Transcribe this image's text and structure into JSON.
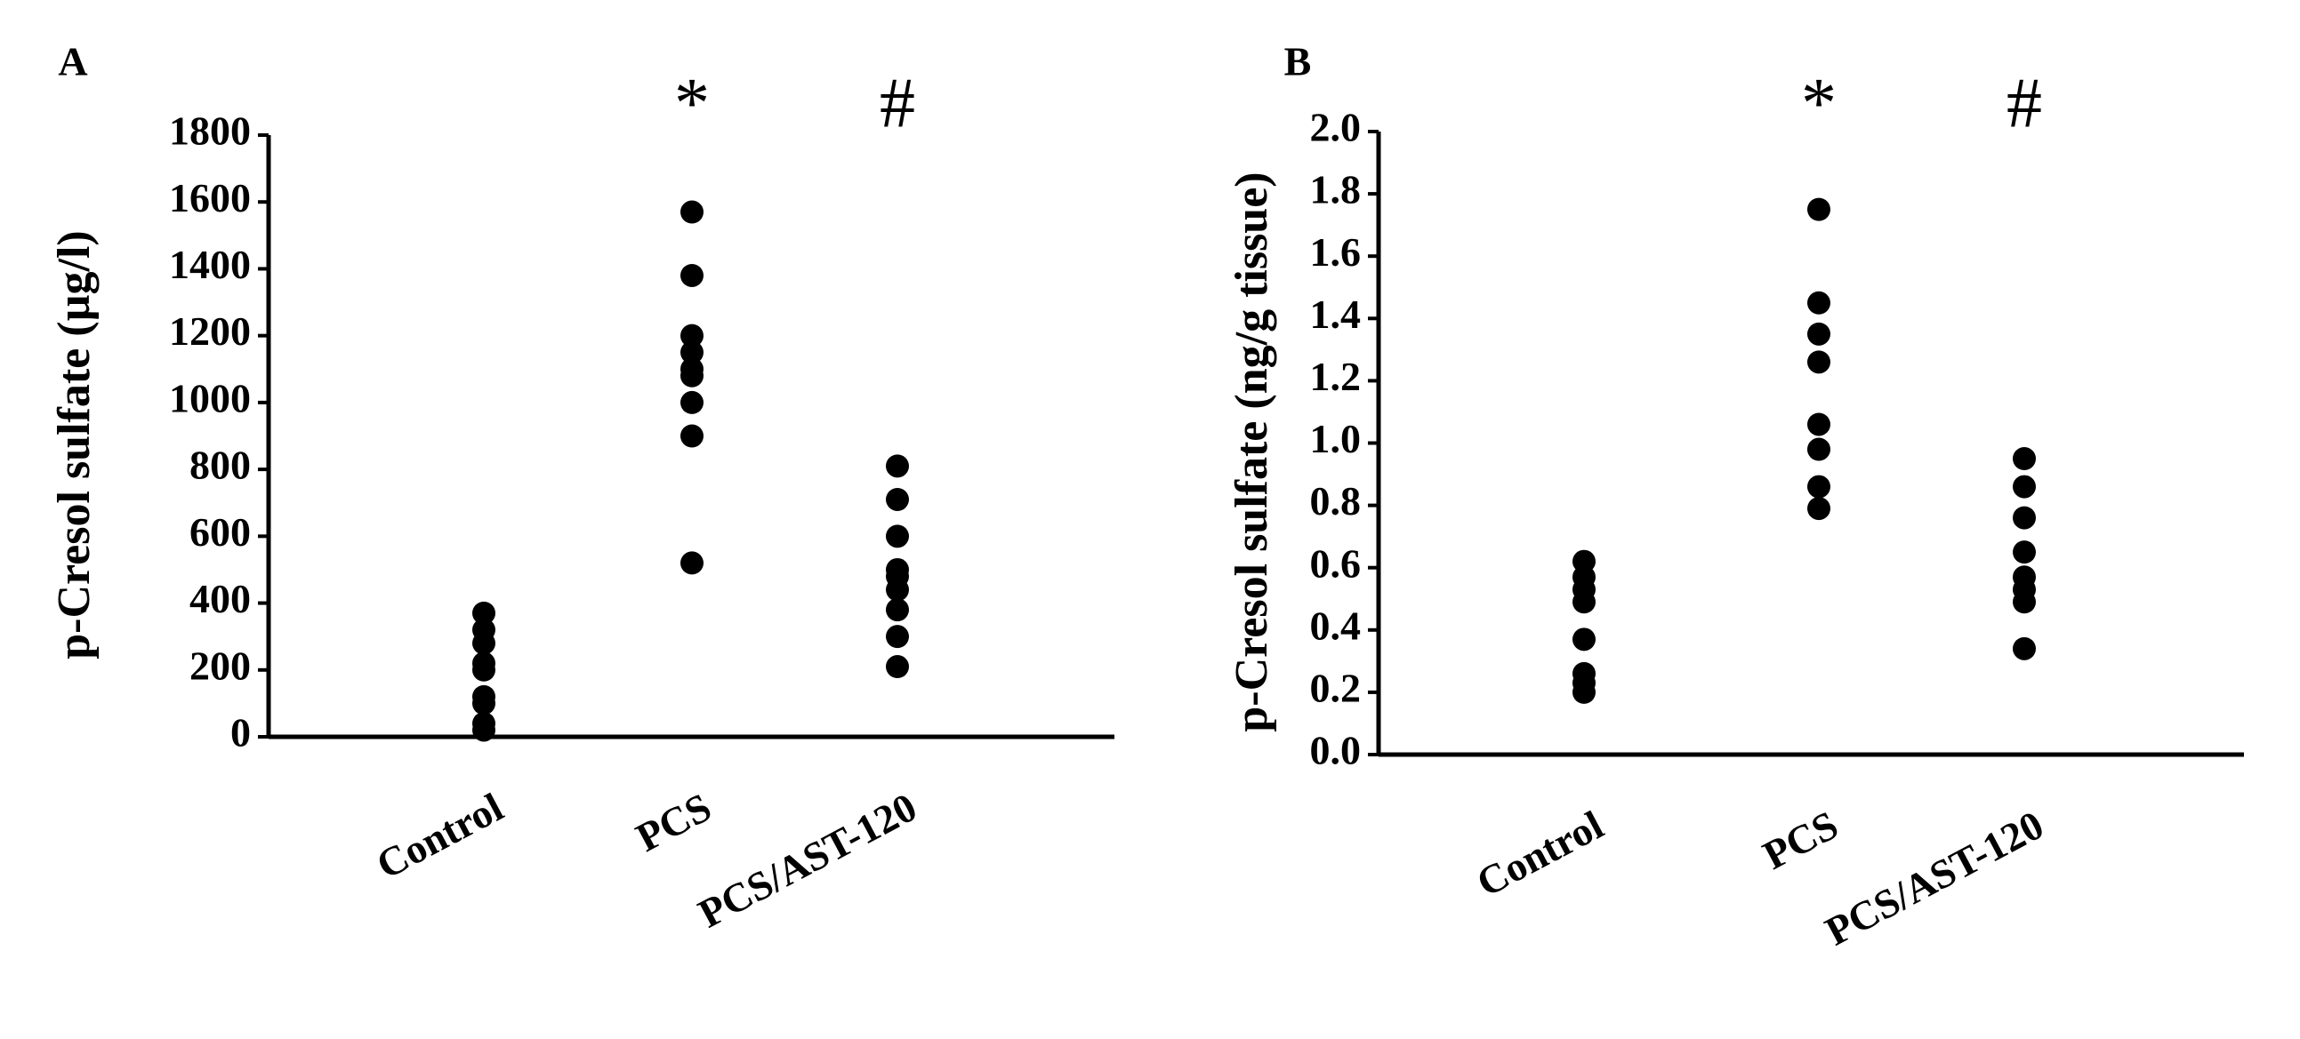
{
  "chart_data": [
    {
      "type": "strip",
      "panel_label": "A",
      "y_label": "p-Cresol sulfate (µg/l)",
      "categories": [
        "Control",
        "PCS",
        "PCS/AST-120"
      ],
      "annotations": [
        null,
        "*",
        "#"
      ],
      "values": [
        [
          370,
          320,
          280,
          220,
          200,
          120,
          100,
          40,
          20
        ],
        [
          1570,
          1380,
          1200,
          1150,
          1100,
          1080,
          1000,
          900,
          520
        ],
        [
          810,
          710,
          600,
          500,
          480,
          440,
          380,
          300,
          210
        ]
      ],
      "color": "#000000",
      "ylim": [
        0,
        1800
      ],
      "yticks": [
        0,
        200,
        400,
        600,
        800,
        1000,
        1200,
        1400,
        1600,
        1800
      ]
    },
    {
      "type": "strip",
      "panel_label": "B",
      "y_label": "p-Cresol sulfate (ng/g tissue)",
      "categories": [
        "Control",
        "PCS",
        "PCS/AST-120"
      ],
      "annotations": [
        null,
        "*",
        "#"
      ],
      "values": [
        [
          0.62,
          0.57,
          0.53,
          0.49,
          0.37,
          0.26,
          0.23,
          0.2
        ],
        [
          1.75,
          1.45,
          1.35,
          1.26,
          1.06,
          0.98,
          0.86,
          0.79
        ],
        [
          0.95,
          0.86,
          0.76,
          0.65,
          0.57,
          0.53,
          0.49,
          0.34
        ]
      ],
      "color": "#000000",
      "ylim": [
        0,
        2
      ],
      "yticks": [
        {
          "value": 0,
          "label": "0.0"
        },
        0.2,
        0.4,
        0.6,
        0.8,
        {
          "value": 1,
          "label": "1.0"
        },
        1.2,
        1.4,
        1.6,
        1.8,
        {
          "value": 2,
          "label": "2.0"
        }
      ]
    }
  ]
}
